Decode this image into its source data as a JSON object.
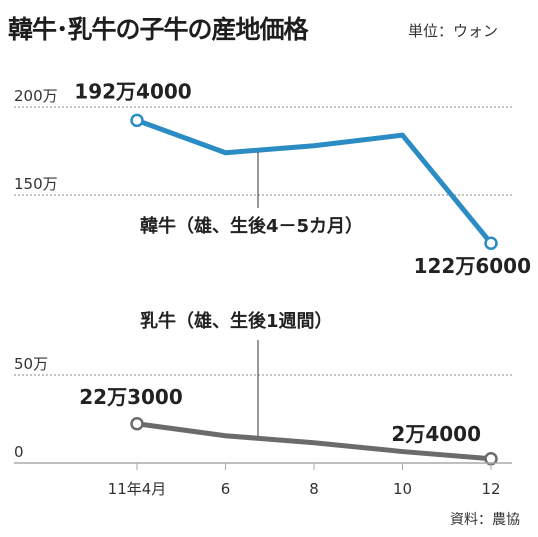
{
  "title": "韓牛･乳牛の子牛の産地価格",
  "unit_label": "単位：ウォン",
  "source": "資料：農協",
  "colors": {
    "hanwoo": "#2b8cc4",
    "dairy": "#6b6b6b",
    "grid": "#888888",
    "axis": "#aaaaaa"
  },
  "chart_data": [
    {
      "type": "line",
      "title": "",
      "x": [
        4,
        6,
        8,
        10,
        12
      ],
      "x_tick_labels": [
        "11年4月",
        "6",
        "8",
        "10",
        "12"
      ],
      "ylim": [
        130,
        215
      ],
      "y_ticks": [
        {
          "value": 200,
          "label": "200万"
        },
        {
          "value": 150,
          "label": "150万"
        }
      ],
      "grid": "dashed",
      "series": [
        {
          "name": "韓牛（雄、生後4－5カ月）",
          "values": [
            192.4,
            174,
            178,
            184,
            122.6
          ],
          "start_label": "192万4000",
          "end_label": "122万6000"
        }
      ]
    },
    {
      "type": "line",
      "title": "",
      "x": [
        4,
        6,
        8,
        10,
        12
      ],
      "x_tick_labels": [
        "11年4月",
        "6",
        "8",
        "10",
        "12"
      ],
      "ylim": [
        0,
        75
      ],
      "y_ticks": [
        {
          "value": 50,
          "label": "50万"
        },
        {
          "value": 0,
          "label": "0"
        }
      ],
      "grid": "dashed",
      "series": [
        {
          "name": "乳牛（雄、生後1週間）",
          "values": [
            22.3,
            15.5,
            11.5,
            6.5,
            2.4
          ],
          "start_label": "22万3000",
          "end_label": "2万4000"
        }
      ]
    }
  ]
}
